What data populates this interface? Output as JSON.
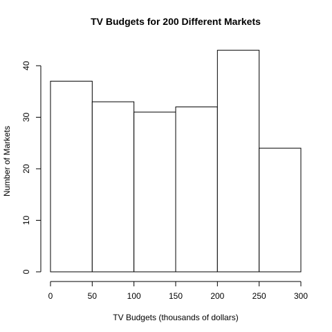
{
  "chart_data": {
    "type": "bar",
    "title": "TV Budgets for 200 Different Markets",
    "xlabel": "TV Budgets (thousands of dollars)",
    "ylabel": "Number of Markets",
    "bins": [
      {
        "start": 0,
        "end": 50,
        "count": 37
      },
      {
        "start": 50,
        "end": 100,
        "count": 33
      },
      {
        "start": 100,
        "end": 150,
        "count": 31
      },
      {
        "start": 150,
        "end": 200,
        "count": 32
      },
      {
        "start": 200,
        "end": 250,
        "count": 43
      },
      {
        "start": 250,
        "end": 300,
        "count": 24
      }
    ],
    "xlim": [
      0,
      300
    ],
    "ylim": [
      0,
      40
    ],
    "x_ticks": [
      "0",
      "50",
      "100",
      "150",
      "200",
      "250",
      "300"
    ],
    "y_ticks": [
      "0",
      "10",
      "20",
      "30",
      "40"
    ],
    "grid": false,
    "legend": "none"
  }
}
